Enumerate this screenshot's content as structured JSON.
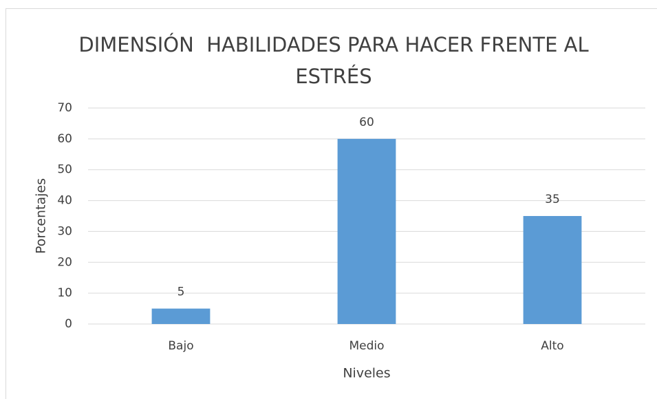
{
  "chart_data": {
    "type": "bar",
    "title": "DIMENSIÓN  HABILIDADES PARA HACER FRENTE AL ESTRÉS",
    "categories": [
      "Bajo",
      "Medio",
      "Alto"
    ],
    "values": [
      5,
      60,
      35
    ],
    "color": "#5b9bd5",
    "xlabel": "Niveles",
    "ylabel": "Porcentajes",
    "ylim": [
      0,
      70
    ],
    "yticks": [
      0,
      10,
      20,
      30,
      40,
      50,
      60,
      70
    ],
    "grid": true
  }
}
